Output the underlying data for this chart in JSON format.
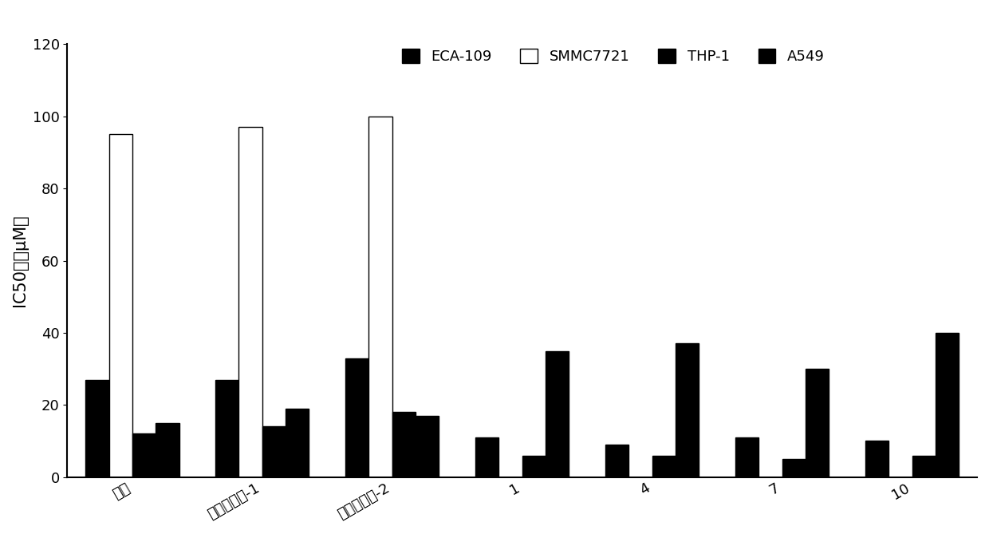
{
  "categories": [
    "卡铂",
    "公开化合物-1",
    "公开化合物-2",
    "1",
    "4",
    "7",
    "10"
  ],
  "series": {
    "ECA-109": [
      27,
      27,
      33,
      11,
      9,
      11,
      10
    ],
    "SMMC7721": [
      95,
      97,
      100,
      0,
      0,
      0,
      0
    ],
    "THP-1": [
      12,
      14,
      18,
      6,
      6,
      5,
      6
    ],
    "A549": [
      15,
      19,
      17,
      35,
      37,
      30,
      40
    ]
  },
  "colors": {
    "ECA-109": "#000000",
    "SMMC7721": "#ffffff",
    "THP-1": "#000000",
    "A549": "#000000"
  },
  "hatches": {
    "ECA-109": "",
    "SMMC7721": "",
    "THP-1": "",
    "A549": "|||"
  },
  "edgecolors": {
    "ECA-109": "#000000",
    "SMMC7721": "#000000",
    "THP-1": "#000000",
    "A549": "#000000"
  },
  "ylabel": "IC50値（μM）",
  "ylim": [
    0,
    120
  ],
  "yticks": [
    0,
    20,
    40,
    60,
    80,
    100,
    120
  ],
  "legend_labels": [
    "ECA-109",
    "SMMC7721",
    "THP-1",
    "A549"
  ],
  "bar_width": 0.18,
  "background_color": "#ffffff",
  "fontsize_tick": 13,
  "fontsize_label": 15,
  "fontsize_legend": 13
}
